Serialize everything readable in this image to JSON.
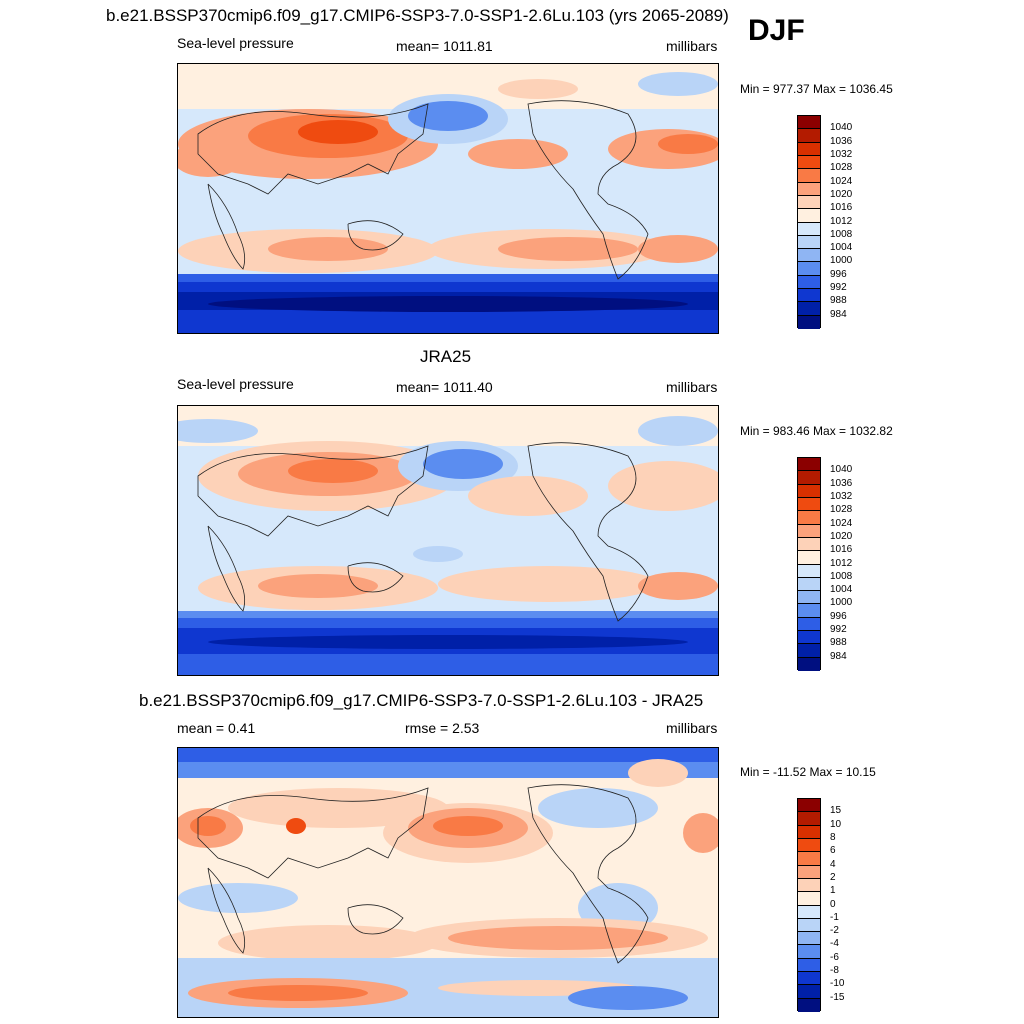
{
  "header": {
    "season": "DJF"
  },
  "panels": [
    {
      "title": "b.e21.BSSP370cmip6.f09_g17.CMIP6-SSP3-7.0-SSP1-2.6Lu.103 (yrs 2065-2089)",
      "left_label": "Sea-level pressure",
      "center_label": "mean= 1011.81",
      "right_label": "millibars",
      "minmax": "Min = 977.37 Max = 1036.45"
    },
    {
      "title": "JRA25",
      "left_label": "Sea-level pressure",
      "center_label": "mean= 1011.40",
      "right_label": "millibars",
      "minmax": "Min = 983.46 Max = 1032.82"
    },
    {
      "title": "b.e21.BSSP370cmip6.f09_g17.CMIP6-SSP3-7.0-SSP1-2.6Lu.103 - JRA25",
      "left_label": "mean =   0.41",
      "center_label": "rmse =   2.53",
      "right_label": "millibars",
      "minmax": "Min = -11.52 Max =  10.15"
    }
  ],
  "colorbars": {
    "abs": {
      "labels": [
        "1040",
        "1036",
        "1032",
        "1028",
        "1024",
        "1020",
        "1016",
        "1012",
        "1008",
        "1004",
        "1000",
        "996",
        "992",
        "988",
        "984"
      ],
      "colors": [
        "#8b0000",
        "#b31b00",
        "#d83000",
        "#ef4b10",
        "#f97a45",
        "#fba27c",
        "#fdd2b8",
        "#fff0e0",
        "#d6e8fb",
        "#b9d4f7",
        "#8fb5f3",
        "#5b8df0",
        "#2e5ee6",
        "#0f37d0",
        "#0020a8",
        "#000f80"
      ]
    },
    "diff": {
      "labels": [
        "15",
        "10",
        "8",
        "6",
        "4",
        "2",
        "1",
        "0",
        "-1",
        "-2",
        "-4",
        "-6",
        "-8",
        "-10",
        "-15"
      ],
      "colors": [
        "#8b0000",
        "#b31b00",
        "#d83000",
        "#ef4b10",
        "#f97a45",
        "#fba27c",
        "#fdd2b8",
        "#fff0e0",
        "#d6e8fb",
        "#b9d4f7",
        "#8fb5f3",
        "#5b8df0",
        "#2e5ee6",
        "#0f37d0",
        "#0020a8",
        "#000f80"
      ]
    }
  }
}
